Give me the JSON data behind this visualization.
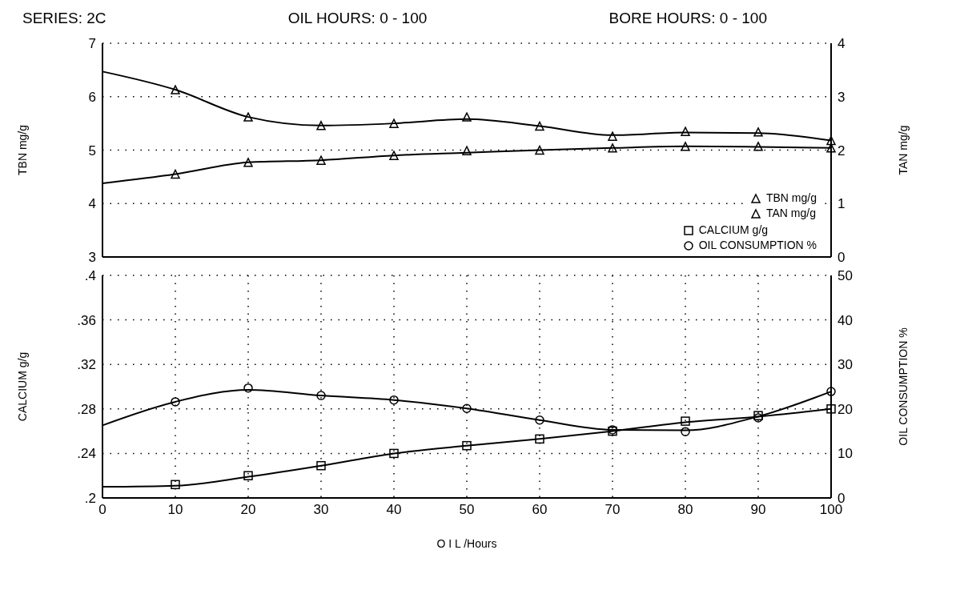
{
  "chart_data": [
    {
      "type": "scatter",
      "title": "SERIES: 2C",
      "annotations": [
        "OIL HOURS: 0 - 100",
        "BORE HOURS: 0 - 100"
      ],
      "ylabel": "TBN mg/g",
      "y2label": "TAN mg/g",
      "xlim": [
        0,
        100
      ],
      "xticks": [
        0,
        10,
        20,
        30,
        40,
        50,
        60,
        70,
        80,
        90,
        100
      ],
      "ylim": [
        3,
        7
      ],
      "yticks": [
        3,
        4,
        5,
        6,
        7
      ],
      "y2lim": [
        0,
        4
      ],
      "y2ticks": [
        0,
        1,
        2,
        3,
        4
      ],
      "grid": true,
      "legend": "bottom right",
      "tick_labels": "y",
      "line_style": "solid",
      "series": [
        {
          "name": "TBN mg/g",
          "color": "#000000",
          "marker": "triangle",
          "x": [
            10,
            20,
            30,
            40,
            50,
            60,
            70,
            80,
            90,
            100
          ],
          "values": [
            6.13,
            5.62,
            5.46,
            5.5,
            5.62,
            5.45,
            5.26,
            5.35,
            5.34,
            5.18
          ]
        },
        {
          "name": "TAN mg/g",
          "color": "#000000",
          "marker": "triangle",
          "axis": "y2",
          "x": [
            10,
            20,
            30,
            40,
            50,
            60,
            70,
            80,
            90,
            100
          ],
          "values": [
            1.55,
            1.77,
            1.81,
            1.9,
            1.99,
            2.0,
            2.04,
            2.07,
            2.07,
            2.04
          ]
        },
        {
          "type": "line",
          "color": "#000000",
          "marker": "none",
          "x": [
            0,
            10,
            20,
            30,
            40,
            50,
            60,
            70,
            80,
            90,
            100
          ],
          "values": [
            6.47,
            6.13,
            5.62,
            5.46,
            5.5,
            5.58,
            5.45,
            5.28,
            5.33,
            5.32,
            5.18
          ]
        },
        {
          "type": "line",
          "color": "#000000",
          "marker": "none",
          "axis": "y2",
          "x": [
            0,
            10,
            20,
            30,
            40,
            50,
            60,
            70,
            80,
            90,
            100
          ],
          "values": [
            1.38,
            1.55,
            1.77,
            1.81,
            1.9,
            1.95,
            2.0,
            2.04,
            2.07,
            2.06,
            2.04
          ]
        }
      ]
    },
    {
      "type": "scatter",
      "xlabel": "O I L /Hours",
      "ylabel": "CALCIUM g/g",
      "y2label": "OIL CONSUMPTION %",
      "xlim": [
        0,
        100
      ],
      "xticks": [
        0,
        10,
        20,
        30,
        40,
        50,
        60,
        70,
        80,
        90,
        100
      ],
      "legend": "top right",
      "ylim": [
        0.2,
        0.4
      ],
      "yticks": [
        {
          "value": 0.2,
          "label": ".2"
        },
        {
          "value": 0.24,
          "label": ".24"
        },
        {
          "value": 0.28,
          "label": ".28"
        },
        {
          "value": 0.32,
          "label": ".32"
        },
        {
          "value": 0.36,
          "label": ".36"
        },
        {
          "value": 0.4,
          "label": ".4"
        }
      ],
      "y2lim": [
        0,
        50
      ],
      "y2ticks": [
        0,
        10,
        20,
        30,
        40,
        50
      ],
      "grid": true,
      "line_style": "solid",
      "series": [
        {
          "name": "CALCIUM g/g",
          "color": "#000000",
          "marker": "square",
          "x": [
            10,
            20,
            30,
            40,
            50,
            60,
            70,
            80,
            90,
            100
          ],
          "values": [
            0.212,
            0.22,
            0.229,
            0.24,
            0.247,
            0.253,
            0.26,
            0.269,
            0.274,
            0.28
          ]
        },
        {
          "name": "OIL CONSUMPTION %",
          "color": "#000000",
          "marker": "circle",
          "axis": "y2",
          "x": [
            10,
            20,
            30,
            40,
            50,
            60,
            70,
            80,
            90,
            100
          ],
          "values": [
            21.6,
            24.7,
            23,
            22,
            20.1,
            17.5,
            15.3,
            14.9,
            18,
            23.9
          ]
        },
        {
          "type": "line",
          "color": "#000000",
          "marker": "none",
          "x": [
            0,
            10,
            20,
            30,
            40,
            50,
            60,
            70,
            80,
            90,
            100
          ],
          "values": [
            0.21,
            0.211,
            0.219,
            0.229,
            0.24,
            0.247,
            0.253,
            0.26,
            0.268,
            0.273,
            0.28
          ]
        },
        {
          "type": "line",
          "color": "#000000",
          "marker": "none",
          "axis": "y2",
          "x": [
            0,
            10,
            20,
            30,
            40,
            50,
            60,
            70,
            80,
            90,
            100
          ],
          "values": [
            16.3,
            21.6,
            24.3,
            23,
            22,
            20.1,
            17.5,
            15.3,
            15.2,
            18.3,
            23.9
          ]
        }
      ]
    }
  ]
}
